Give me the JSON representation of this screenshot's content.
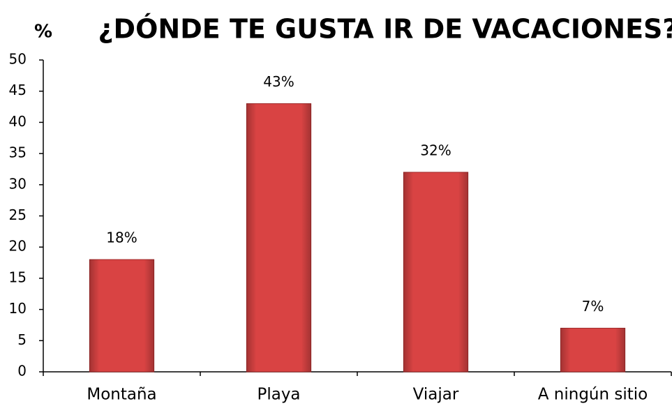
{
  "chart_data": {
    "type": "bar",
    "title": "¿DÓNDE TE GUSTA IR DE VACACIONES?",
    "y_label": "%",
    "categories": [
      "Montaña",
      "Playa",
      "Viajar",
      "A ningún sitio"
    ],
    "values": [
      18,
      43,
      32,
      7
    ],
    "value_labels": [
      "18%",
      "43%",
      "32%",
      "7%"
    ],
    "color": "#d94343",
    "ylim": [
      0,
      50
    ],
    "yticks": [
      0,
      5,
      10,
      15,
      20,
      25,
      30,
      35,
      40,
      45,
      50
    ],
    "grid": false
  }
}
